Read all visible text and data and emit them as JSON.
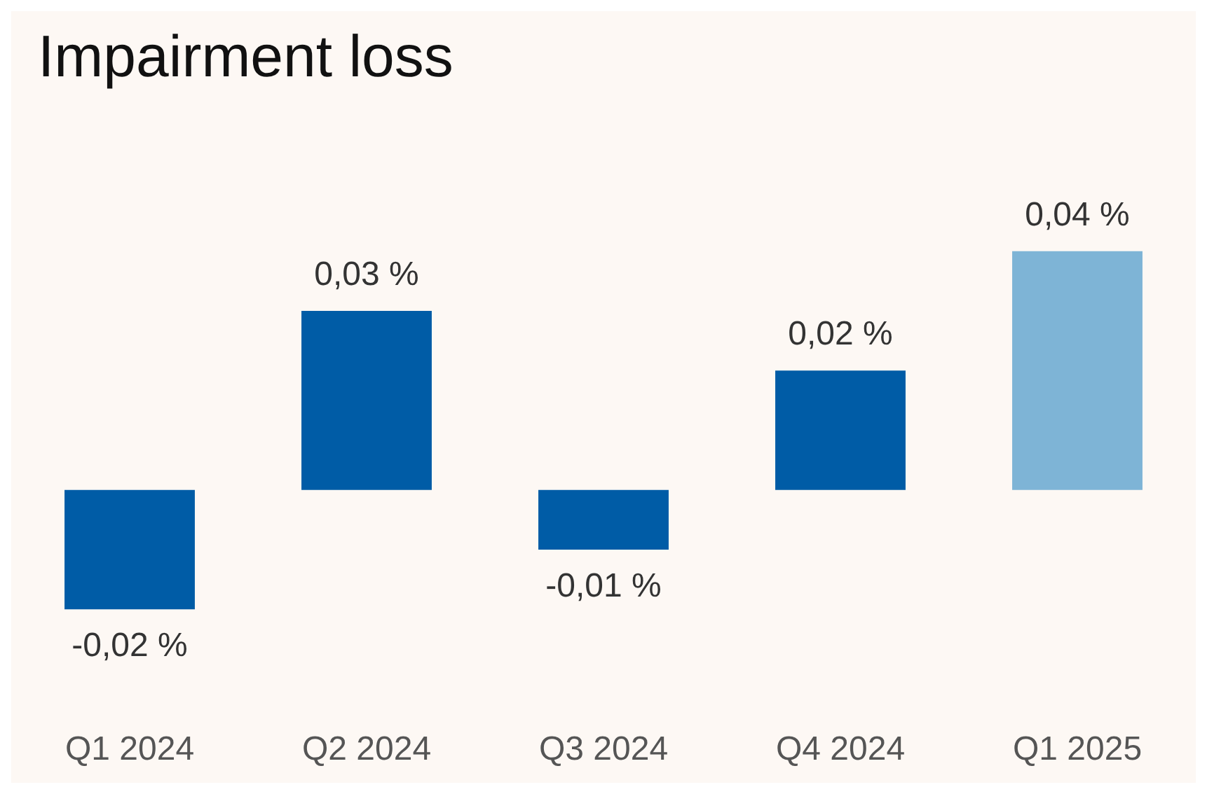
{
  "chart_data": {
    "type": "bar",
    "title": "Impairment loss",
    "categories": [
      "Q1 2024",
      "Q2 2024",
      "Q3 2024",
      "Q4 2024",
      "Q1 2025"
    ],
    "values": [
      -0.02,
      0.03,
      -0.01,
      0.02,
      0.04
    ],
    "colors": [
      "#005ca6",
      "#005ca6",
      "#005ca6",
      "#005ca6",
      "#7eb4d6"
    ],
    "value_labels": [
      "-0,02 %",
      "0,03 %",
      "-0,01 %",
      "0,02 %",
      "0,04 %"
    ],
    "tick_labels": "x"
  }
}
